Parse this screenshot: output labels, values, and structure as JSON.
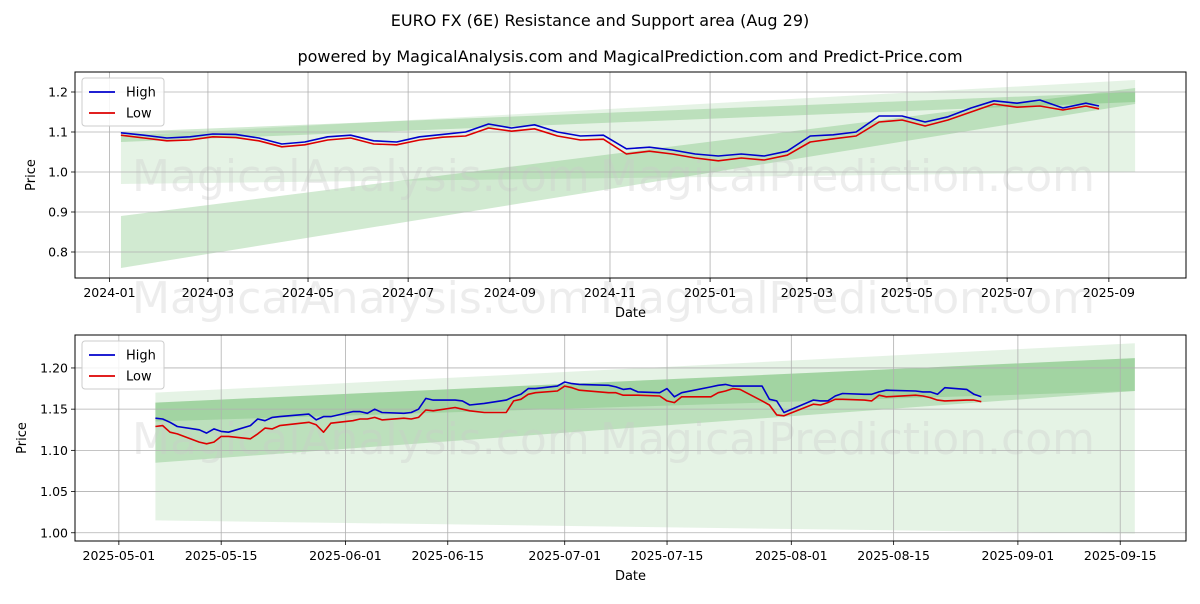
{
  "page": {
    "title": "EURO FX (6E) Resistance and Support area (Aug 29)",
    "subtitle": "powered by MagicalAnalysis.com and MagicalPrediction.com and Predict-Price.com",
    "watermarks": [
      "MagicalAnalysis.com",
      "MagicalPrediction.com"
    ]
  },
  "colors": {
    "high": "#0000cc",
    "low": "#dd0000",
    "band": "#2ca02c",
    "grid": "#b0b0b0"
  },
  "chart_data": [
    {
      "type": "line",
      "name": "top-chart",
      "xlabel": "Date",
      "ylabel": "Price",
      "xlim": [
        "2023-12-11",
        "2025-10-18"
      ],
      "ylim": [
        0.735,
        1.25
      ],
      "xticks": [
        "2024-01-01",
        "2024-03-01",
        "2024-05-01",
        "2024-07-01",
        "2024-09-01",
        "2024-11-01",
        "2025-01-01",
        "2025-03-01",
        "2025-05-01",
        "2025-07-01",
        "2025-09-01"
      ],
      "xtick_labels": [
        "2024-01",
        "2024-03",
        "2024-05",
        "2024-07",
        "2024-09",
        "2024-11",
        "2025-01",
        "2025-03",
        "2025-05",
        "2025-07",
        "2025-09"
      ],
      "yticks": [
        0.8,
        0.9,
        1.0,
        1.1,
        1.2
      ],
      "ytick_labels": [
        "0.8",
        "0.9",
        "1.0",
        "1.1",
        "1.2"
      ],
      "grid": true,
      "legend": "top-left",
      "bands": [
        {
          "x": [
            "2024-01-08",
            "2025-09-17"
          ],
          "lower": [
            0.97,
            1.0
          ],
          "upper": [
            1.09,
            1.23
          ],
          "opacity": 0.12
        },
        {
          "x": [
            "2024-01-08",
            "2025-09-17"
          ],
          "lower": [
            0.76,
            1.17
          ],
          "upper": [
            0.89,
            1.21
          ],
          "opacity": 0.22
        },
        {
          "x": [
            "2024-01-08",
            "2025-09-17"
          ],
          "lower": [
            1.075,
            1.175
          ],
          "upper": [
            1.1,
            1.2
          ],
          "opacity": 0.22
        }
      ],
      "series": [
        {
          "name": "High",
          "x": [
            "2024-01-08",
            "2024-01-22",
            "2024-02-05",
            "2024-02-19",
            "2024-03-04",
            "2024-03-18",
            "2024-04-01",
            "2024-04-15",
            "2024-04-29",
            "2024-05-13",
            "2024-05-27",
            "2024-06-10",
            "2024-06-24",
            "2024-07-08",
            "2024-07-22",
            "2024-08-05",
            "2024-08-19",
            "2024-09-02",
            "2024-09-16",
            "2024-09-30",
            "2024-10-14",
            "2024-10-28",
            "2024-11-11",
            "2024-11-25",
            "2024-12-09",
            "2024-12-23",
            "2025-01-06",
            "2025-01-20",
            "2025-02-03",
            "2025-02-17",
            "2025-03-03",
            "2025-03-17",
            "2025-03-31",
            "2025-04-14",
            "2025-04-28",
            "2025-05-12",
            "2025-05-26",
            "2025-06-09",
            "2025-06-23",
            "2025-07-07",
            "2025-07-21",
            "2025-08-04",
            "2025-08-18",
            "2025-08-26"
          ],
          "values": [
            1.098,
            1.092,
            1.085,
            1.088,
            1.095,
            1.094,
            1.085,
            1.07,
            1.075,
            1.088,
            1.092,
            1.078,
            1.075,
            1.088,
            1.094,
            1.1,
            1.12,
            1.11,
            1.118,
            1.1,
            1.09,
            1.092,
            1.058,
            1.062,
            1.055,
            1.045,
            1.04,
            1.045,
            1.04,
            1.052,
            1.09,
            1.093,
            1.1,
            1.14,
            1.14,
            1.125,
            1.138,
            1.16,
            1.178,
            1.172,
            1.18,
            1.16,
            1.172,
            1.165
          ]
        },
        {
          "name": "Low",
          "x": [
            "2024-01-08",
            "2024-01-22",
            "2024-02-05",
            "2024-02-19",
            "2024-03-04",
            "2024-03-18",
            "2024-04-01",
            "2024-04-15",
            "2024-04-29",
            "2024-05-13",
            "2024-05-27",
            "2024-06-10",
            "2024-06-24",
            "2024-07-08",
            "2024-07-22",
            "2024-08-05",
            "2024-08-19",
            "2024-09-02",
            "2024-09-16",
            "2024-09-30",
            "2024-10-14",
            "2024-10-28",
            "2024-11-11",
            "2024-11-25",
            "2024-12-09",
            "2024-12-23",
            "2025-01-06",
            "2025-01-20",
            "2025-02-03",
            "2025-02-17",
            "2025-03-03",
            "2025-03-17",
            "2025-03-31",
            "2025-04-14",
            "2025-04-28",
            "2025-05-12",
            "2025-05-26",
            "2025-06-09",
            "2025-06-23",
            "2025-07-07",
            "2025-07-21",
            "2025-08-04",
            "2025-08-18",
            "2025-08-26"
          ],
          "values": [
            1.092,
            1.085,
            1.078,
            1.08,
            1.088,
            1.086,
            1.078,
            1.063,
            1.068,
            1.08,
            1.085,
            1.07,
            1.068,
            1.08,
            1.087,
            1.09,
            1.11,
            1.102,
            1.108,
            1.09,
            1.08,
            1.082,
            1.045,
            1.052,
            1.045,
            1.035,
            1.028,
            1.035,
            1.03,
            1.042,
            1.075,
            1.083,
            1.09,
            1.125,
            1.13,
            1.115,
            1.13,
            1.15,
            1.17,
            1.162,
            1.165,
            1.155,
            1.165,
            1.158
          ]
        }
      ]
    },
    {
      "type": "line",
      "name": "bottom-chart",
      "xlabel": "Date",
      "ylabel": "Price",
      "xlim": [
        "2025-04-25",
        "2025-09-24"
      ],
      "ylim": [
        0.99,
        1.24
      ],
      "xticks": [
        "2025-05-01",
        "2025-05-15",
        "2025-06-01",
        "2025-06-15",
        "2025-07-01",
        "2025-07-15",
        "2025-08-01",
        "2025-08-15",
        "2025-09-01",
        "2025-09-15"
      ],
      "xtick_labels": [
        "2025-05-01",
        "2025-05-15",
        "2025-06-01",
        "2025-06-15",
        "2025-07-01",
        "2025-07-15",
        "2025-08-01",
        "2025-08-15",
        "2025-09-01",
        "2025-09-15"
      ],
      "yticks": [
        1.0,
        1.05,
        1.1,
        1.15,
        1.2
      ],
      "ytick_labels": [
        "1.00",
        "1.05",
        "1.10",
        "1.15",
        "1.20"
      ],
      "grid": true,
      "legend": "top-left",
      "bands": [
        {
          "x": [
            "2025-05-06",
            "2025-09-17"
          ],
          "lower": [
            1.015,
            0.999
          ],
          "upper": [
            1.17,
            1.23
          ],
          "opacity": 0.12
        },
        {
          "x": [
            "2025-05-06",
            "2025-09-17"
          ],
          "lower": [
            1.085,
            1.172
          ],
          "upper": [
            1.158,
            1.212
          ],
          "opacity": 0.22
        },
        {
          "x": [
            "2025-05-06",
            "2025-09-17"
          ],
          "lower": [
            1.135,
            1.172
          ],
          "upper": [
            1.158,
            1.212
          ],
          "opacity": 0.18
        }
      ],
      "series": [
        {
          "name": "High",
          "x": [
            "2025-05-06",
            "2025-05-07",
            "2025-05-08",
            "2025-05-09",
            "2025-05-12",
            "2025-05-13",
            "2025-05-14",
            "2025-05-15",
            "2025-05-16",
            "2025-05-19",
            "2025-05-20",
            "2025-05-21",
            "2025-05-22",
            "2025-05-23",
            "2025-05-27",
            "2025-05-28",
            "2025-05-29",
            "2025-05-30",
            "2025-06-02",
            "2025-06-03",
            "2025-06-04",
            "2025-06-05",
            "2025-06-06",
            "2025-06-09",
            "2025-06-10",
            "2025-06-11",
            "2025-06-12",
            "2025-06-13",
            "2025-06-16",
            "2025-06-17",
            "2025-06-18",
            "2025-06-20",
            "2025-06-23",
            "2025-06-24",
            "2025-06-25",
            "2025-06-26",
            "2025-06-27",
            "2025-06-30",
            "2025-07-01",
            "2025-07-02",
            "2025-07-03",
            "2025-07-07",
            "2025-07-08",
            "2025-07-09",
            "2025-07-10",
            "2025-07-11",
            "2025-07-14",
            "2025-07-15",
            "2025-07-16",
            "2025-07-17",
            "2025-07-21",
            "2025-07-22",
            "2025-07-23",
            "2025-07-24",
            "2025-07-25",
            "2025-07-28",
            "2025-07-29",
            "2025-07-30",
            "2025-07-31",
            "2025-08-04",
            "2025-08-05",
            "2025-08-06",
            "2025-08-07",
            "2025-08-08",
            "2025-08-11",
            "2025-08-12",
            "2025-08-13",
            "2025-08-14",
            "2025-08-18",
            "2025-08-19",
            "2025-08-20",
            "2025-08-21",
            "2025-08-22",
            "2025-08-25",
            "2025-08-26",
            "2025-08-27"
          ],
          "values": [
            1.139,
            1.138,
            1.134,
            1.129,
            1.125,
            1.121,
            1.126,
            1.123,
            1.122,
            1.13,
            1.138,
            1.136,
            1.14,
            1.141,
            1.144,
            1.137,
            1.141,
            1.141,
            1.147,
            1.147,
            1.145,
            1.15,
            1.146,
            1.145,
            1.146,
            1.15,
            1.163,
            1.161,
            1.161,
            1.16,
            1.155,
            1.157,
            1.161,
            1.165,
            1.168,
            1.175,
            1.175,
            1.178,
            1.183,
            1.181,
            1.18,
            1.179,
            1.177,
            1.174,
            1.175,
            1.171,
            1.17,
            1.175,
            1.165,
            1.17,
            1.177,
            1.179,
            1.18,
            1.178,
            1.178,
            1.178,
            1.162,
            1.16,
            1.146,
            1.161,
            1.16,
            1.16,
            1.166,
            1.169,
            1.168,
            1.168,
            1.171,
            1.173,
            1.172,
            1.171,
            1.171,
            1.168,
            1.176,
            1.174,
            1.168,
            1.165
          ]
        },
        {
          "name": "Low",
          "x": [
            "2025-05-06",
            "2025-05-07",
            "2025-05-08",
            "2025-05-09",
            "2025-05-12",
            "2025-05-13",
            "2025-05-14",
            "2025-05-15",
            "2025-05-16",
            "2025-05-19",
            "2025-05-20",
            "2025-05-21",
            "2025-05-22",
            "2025-05-23",
            "2025-05-27",
            "2025-05-28",
            "2025-05-29",
            "2025-05-30",
            "2025-06-02",
            "2025-06-03",
            "2025-06-04",
            "2025-06-05",
            "2025-06-06",
            "2025-06-09",
            "2025-06-10",
            "2025-06-11",
            "2025-06-12",
            "2025-06-13",
            "2025-06-16",
            "2025-06-17",
            "2025-06-18",
            "2025-06-20",
            "2025-06-23",
            "2025-06-24",
            "2025-06-25",
            "2025-06-26",
            "2025-06-27",
            "2025-06-30",
            "2025-07-01",
            "2025-07-02",
            "2025-07-03",
            "2025-07-07",
            "2025-07-08",
            "2025-07-09",
            "2025-07-10",
            "2025-07-11",
            "2025-07-14",
            "2025-07-15",
            "2025-07-16",
            "2025-07-17",
            "2025-07-21",
            "2025-07-22",
            "2025-07-23",
            "2025-07-24",
            "2025-07-25",
            "2025-07-28",
            "2025-07-29",
            "2025-07-30",
            "2025-07-31",
            "2025-08-04",
            "2025-08-05",
            "2025-08-06",
            "2025-08-07",
            "2025-08-08",
            "2025-08-11",
            "2025-08-12",
            "2025-08-13",
            "2025-08-14",
            "2025-08-18",
            "2025-08-19",
            "2025-08-20",
            "2025-08-21",
            "2025-08-22",
            "2025-08-25",
            "2025-08-26",
            "2025-08-27"
          ],
          "values": [
            1.129,
            1.13,
            1.122,
            1.12,
            1.11,
            1.108,
            1.11,
            1.117,
            1.117,
            1.114,
            1.12,
            1.127,
            1.126,
            1.13,
            1.134,
            1.131,
            1.122,
            1.133,
            1.136,
            1.138,
            1.138,
            1.14,
            1.137,
            1.139,
            1.138,
            1.14,
            1.149,
            1.148,
            1.152,
            1.15,
            1.148,
            1.146,
            1.146,
            1.16,
            1.162,
            1.168,
            1.17,
            1.172,
            1.178,
            1.176,
            1.173,
            1.17,
            1.17,
            1.167,
            1.167,
            1.167,
            1.166,
            1.16,
            1.158,
            1.165,
            1.165,
            1.17,
            1.172,
            1.175,
            1.174,
            1.16,
            1.155,
            1.143,
            1.142,
            1.156,
            1.155,
            1.158,
            1.162,
            1.162,
            1.161,
            1.16,
            1.167,
            1.165,
            1.167,
            1.166,
            1.164,
            1.161,
            1.16,
            1.161,
            1.161,
            1.159
          ]
        }
      ]
    }
  ]
}
